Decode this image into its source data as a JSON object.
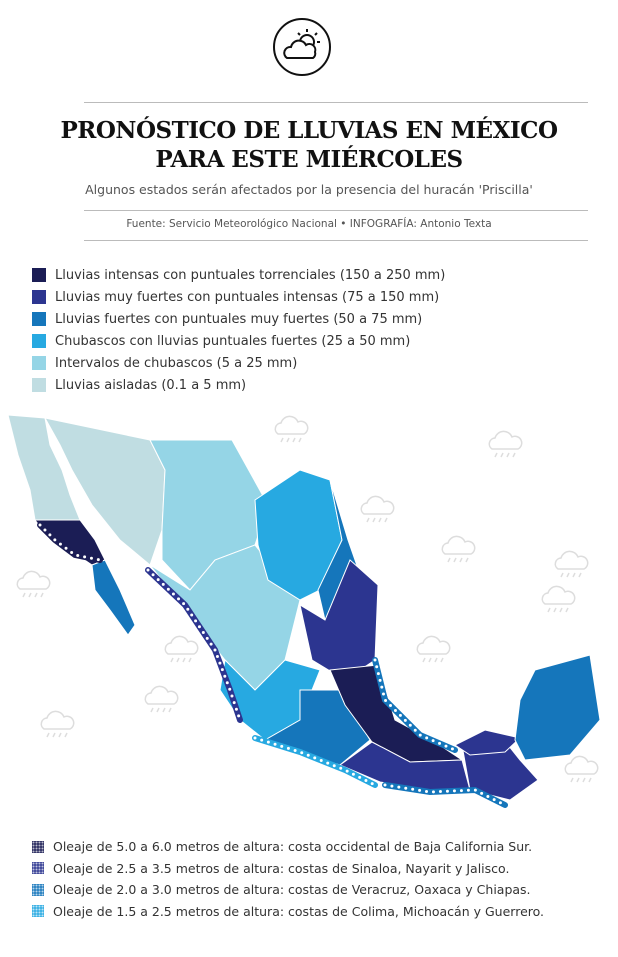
{
  "header": {
    "logo_icon": "sun-behind-cloud-icon",
    "title_line1": "PRONÓSTICO DE LLUVIAS EN MÉXICO",
    "title_line2": "PARA ESTE MIÉRCOLES",
    "subtitle": "Algunos estados serán afectados por la presencia del huracán 'Priscilla'",
    "source": "Fuente: Servicio Meteorológico Nacional • INFOGRAFÍA: Antonio Texta"
  },
  "rain_legend": [
    {
      "label": "Lluvias intensas con puntuales torrenciales (150 a 250 mm)",
      "color": "#1b1d55"
    },
    {
      "label": "Lluvias muy fuertes con puntuales intensas (75 a 150 mm)",
      "color": "#2c3590"
    },
    {
      "label": "Lluvias fuertes con puntuales muy fuertes (50 a 75 mm)",
      "color": "#1576bb"
    },
    {
      "label": "Chubascos con lluvias puntuales fuertes (25 a 50 mm)",
      "color": "#27a9e1"
    },
    {
      "label": "Intervalos de chubascos (5 a 25 mm)",
      "color": "#95d5e6"
    },
    {
      "label": "Lluvias aisladas (0.1 a 5 mm)",
      "color": "#c0dde2"
    }
  ],
  "wave_legend": [
    {
      "label": "Oleaje de 5.0 a 6.0 metros de altura: costa occidental de Baja California Sur.",
      "color": "#1b1d55"
    },
    {
      "label": "Oleaje de 2.5 a 3.5 metros de altura: costas de Sinaloa, Nayarit y Jalisco.",
      "color": "#2c3590"
    },
    {
      "label": "Oleaje de 2.0 a 3.0 metros de altura: costas de Veracruz, Oaxaca y Chiapas.",
      "color": "#1576bb"
    },
    {
      "label": "Oleaje de 1.5 a 2.5 metros de altura: costas de Colima, Michoacán y Guerrero.",
      "color": "#27a9e1"
    }
  ],
  "map": {
    "background_icons": "rain-cloud-icon"
  }
}
